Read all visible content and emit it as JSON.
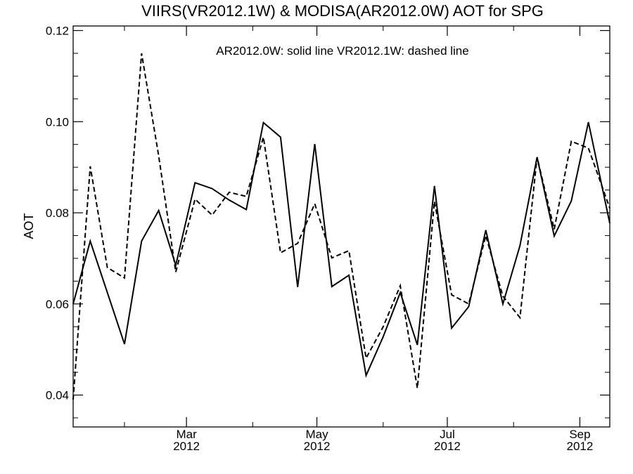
{
  "chart_data": {
    "type": "line",
    "title": "VIIRS(VR2012.1W) & MODISA(AR2012.0W)  AOT for SPG",
    "legend_text": "AR2012.0W: solid line   VR2012.1W: dashed line",
    "xlabel": "",
    "ylabel": "AOT",
    "xlim": [
      "2012-01-08",
      "2012-09-15"
    ],
    "ylim": [
      0.033,
      0.121
    ],
    "y_ticks": [
      {
        "value": 0.04,
        "label": "0.04"
      },
      {
        "value": 0.06,
        "label": "0.06"
      },
      {
        "value": 0.08,
        "label": "0.08"
      },
      {
        "value": 0.1,
        "label": "0.10"
      },
      {
        "value": 0.12,
        "label": "0.12"
      }
    ],
    "y_minor_ticks": [
      0.035,
      0.045,
      0.05,
      0.055,
      0.065,
      0.07,
      0.075,
      0.085,
      0.09,
      0.095,
      0.105,
      0.11,
      0.115
    ],
    "x_ticks": [
      {
        "date": "2012-03-01",
        "month": "Mar",
        "year": "2012"
      },
      {
        "date": "2012-05-01",
        "month": "May",
        "year": "2012"
      },
      {
        "date": "2012-07-01",
        "month": "Jul",
        "year": "2012"
      },
      {
        "date": "2012-09-01",
        "month": "Sep",
        "year": "2012"
      }
    ],
    "x_minor_ticks": [
      "2012-02-01",
      "2012-04-01",
      "2012-06-01",
      "2012-08-01"
    ],
    "series": [
      {
        "name": "AR2012.0W",
        "style": "solid",
        "color": "#000000",
        "points": [
          [
            "2012-01-08",
            0.06
          ],
          [
            "2012-01-16",
            0.0738
          ],
          [
            "2012-01-24",
            0.0625
          ],
          [
            "2012-02-01",
            0.0512
          ],
          [
            "2012-02-09",
            0.0738
          ],
          [
            "2012-02-17",
            0.0805
          ],
          [
            "2012-02-25",
            0.0685
          ],
          [
            "2012-03-05",
            0.0866
          ],
          [
            "2012-03-13",
            0.0853
          ],
          [
            "2012-03-21",
            0.0828
          ],
          [
            "2012-03-29",
            0.0807
          ],
          [
            "2012-04-06",
            0.0998
          ],
          [
            "2012-04-14",
            0.0966
          ],
          [
            "2012-04-22",
            0.0637
          ],
          [
            "2012-04-30",
            0.0951
          ],
          [
            "2012-05-08",
            0.0638
          ],
          [
            "2012-05-16",
            0.0663
          ],
          [
            "2012-05-24",
            0.0443
          ],
          [
            "2012-06-01",
            0.0528
          ],
          [
            "2012-06-09",
            0.0625
          ],
          [
            "2012-06-17",
            0.051
          ],
          [
            "2012-06-25",
            0.0859
          ],
          [
            "2012-07-03",
            0.0547
          ],
          [
            "2012-07-11",
            0.0594
          ],
          [
            "2012-07-19",
            0.0762
          ],
          [
            "2012-07-27",
            0.06
          ],
          [
            "2012-08-04",
            0.0728
          ],
          [
            "2012-08-12",
            0.0922
          ],
          [
            "2012-08-20",
            0.0749
          ],
          [
            "2012-08-28",
            0.0826
          ],
          [
            "2012-09-05",
            0.0999
          ],
          [
            "2012-09-15",
            0.0777
          ]
        ]
      },
      {
        "name": "VR2012.1W",
        "style": "dashed",
        "color": "#000000",
        "points": [
          [
            "2012-01-08",
            0.039
          ],
          [
            "2012-01-16",
            0.0902
          ],
          [
            "2012-01-24",
            0.068
          ],
          [
            "2012-02-01",
            0.0657
          ],
          [
            "2012-02-09",
            0.115
          ],
          [
            "2012-02-17",
            0.0925
          ],
          [
            "2012-02-25",
            0.067
          ],
          [
            "2012-03-05",
            0.083
          ],
          [
            "2012-03-13",
            0.0795
          ],
          [
            "2012-03-21",
            0.0845
          ],
          [
            "2012-03-29",
            0.0836
          ],
          [
            "2012-04-06",
            0.0966
          ],
          [
            "2012-04-14",
            0.0712
          ],
          [
            "2012-04-22",
            0.0733
          ],
          [
            "2012-04-30",
            0.082
          ],
          [
            "2012-05-08",
            0.0701
          ],
          [
            "2012-05-16",
            0.0717
          ],
          [
            "2012-05-24",
            0.0481
          ],
          [
            "2012-06-01",
            0.055
          ],
          [
            "2012-06-09",
            0.064
          ],
          [
            "2012-06-17",
            0.0415
          ],
          [
            "2012-06-25",
            0.0825
          ],
          [
            "2012-07-03",
            0.062
          ],
          [
            "2012-07-11",
            0.06
          ],
          [
            "2012-07-19",
            0.075
          ],
          [
            "2012-07-27",
            0.0617
          ],
          [
            "2012-08-04",
            0.057
          ],
          [
            "2012-08-12",
            0.0922
          ],
          [
            "2012-08-20",
            0.0764
          ],
          [
            "2012-08-28",
            0.0957
          ],
          [
            "2012-09-05",
            0.0942
          ],
          [
            "2012-09-15",
            0.081
          ]
        ]
      }
    ]
  }
}
